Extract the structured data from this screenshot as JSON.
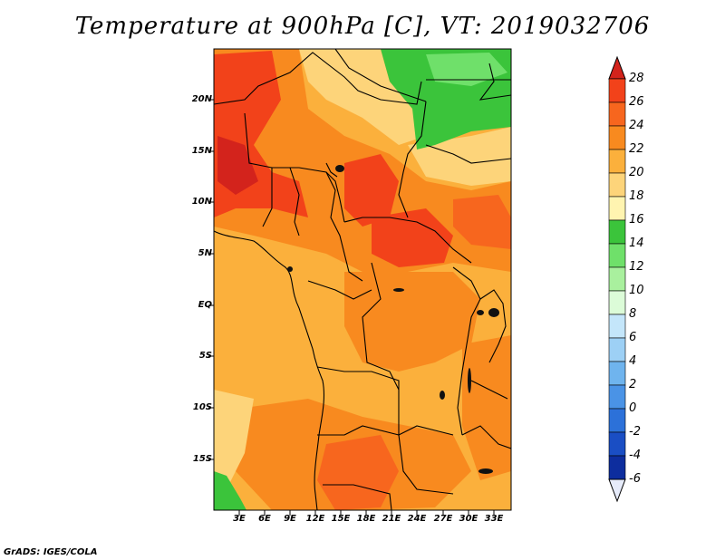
{
  "title": "Temperature at 900hPa [C], VT: 2019032706",
  "credit": "GrADS: IGES/COLA",
  "lat_labels": [
    "20N",
    "15N",
    "10N",
    "5N",
    "EQ",
    "5S",
    "10S",
    "15S"
  ],
  "lon_labels": [
    "3E",
    "6E",
    "9E",
    "12E",
    "15E",
    "18E",
    "21E",
    "24E",
    "27E",
    "30E",
    "33E"
  ],
  "colorbar": {
    "labels": [
      "28",
      "26",
      "24",
      "22",
      "20",
      "18",
      "16",
      "14",
      "12",
      "10",
      "8",
      "6",
      "4",
      "2",
      "0",
      "-2",
      "-4",
      "-6"
    ],
    "colors_top_to_bottom": [
      "#e8231e",
      "#f2421a",
      "#f7661e",
      "#f88a1f",
      "#fbb03c",
      "#fdd47a",
      "#fff4b0",
      "#3bc43b",
      "#6fe06a",
      "#a9f09e",
      "#dcfcd8",
      "#c4e6fa",
      "#9dd0f5",
      "#6fb4ee",
      "#4a93e6",
      "#2c71d9",
      "#1a4ec4",
      "#0d2d9e",
      "#081770"
    ],
    "top_arrow_color": "#d3231c",
    "bottom_arrow_color": "#e6ebfa"
  },
  "colors": {
    "base": "#fbb03c",
    "warm": "#f88a1f",
    "hot": "#f2421a",
    "green": "#3bc43b",
    "cool": "#fdd47a"
  }
}
